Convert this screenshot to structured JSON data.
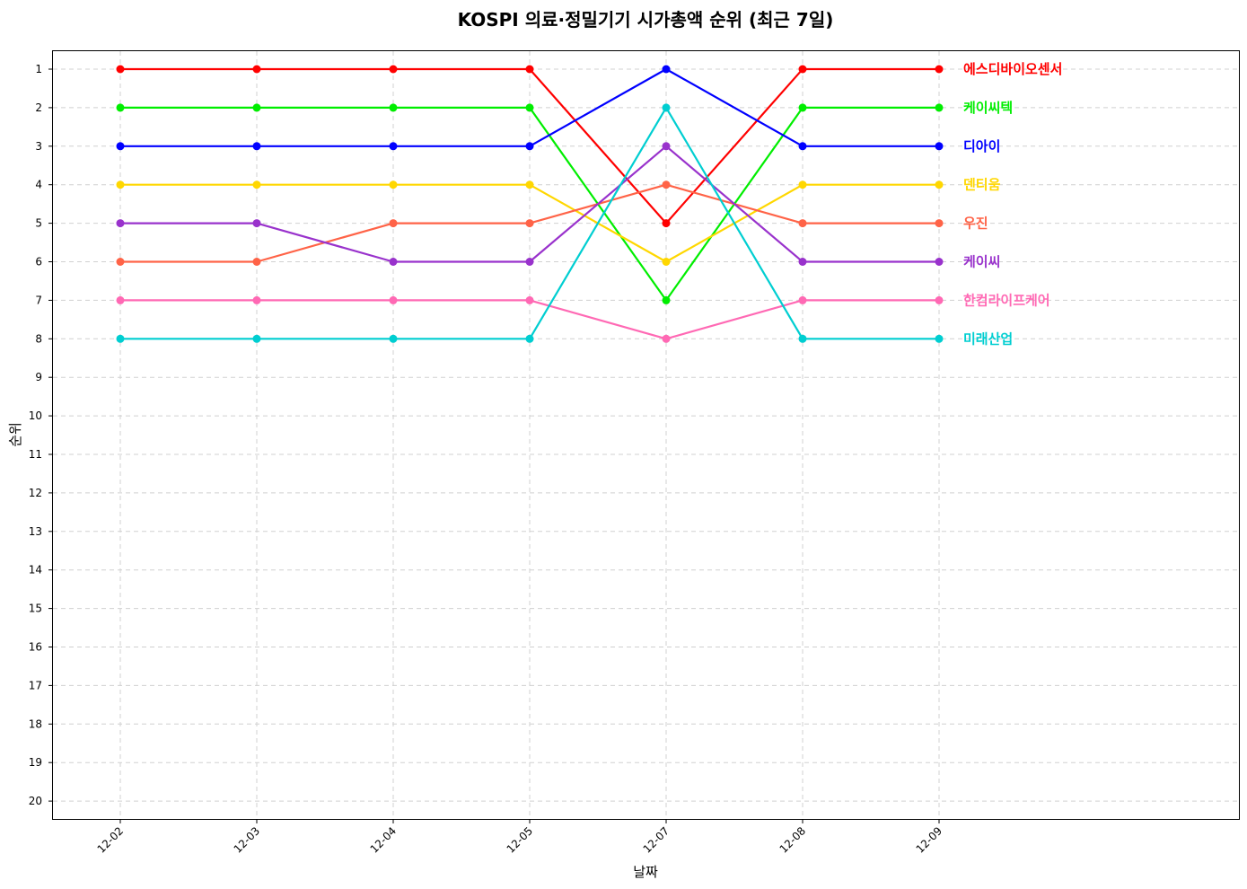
{
  "chart_data": {
    "type": "line",
    "title": "KOSPI 의료·정밀기기 시가총액 순위 (최근 7일)",
    "xlabel": "날짜",
    "ylabel": "순위",
    "categories": [
      "12-02",
      "12-03",
      "12-04",
      "12-05",
      "12-07",
      "12-08",
      "12-09"
    ],
    "y_ticks": [
      "1",
      "2",
      "3",
      "4",
      "5",
      "6",
      "7",
      "8",
      "9",
      "10",
      "11",
      "12",
      "13",
      "14",
      "15",
      "16",
      "17",
      "18",
      "19",
      "20"
    ],
    "ylim": [
      20.5,
      0.5
    ],
    "y_inverted": true,
    "grid": true,
    "legend": "end-of-line labels on the right",
    "series": [
      {
        "name": "에스디바이오센서",
        "color": "#ff0000",
        "values": [
          1,
          1,
          1,
          1,
          5,
          1,
          1
        ]
      },
      {
        "name": "케이씨텍",
        "color": "#00ee00",
        "values": [
          2,
          2,
          2,
          2,
          7,
          2,
          2
        ]
      },
      {
        "name": "디아이",
        "color": "#0000ff",
        "values": [
          3,
          3,
          3,
          3,
          1,
          3,
          3
        ]
      },
      {
        "name": "덴티움",
        "color": "#ffd700",
        "values": [
          4,
          4,
          4,
          4,
          6,
          4,
          4
        ]
      },
      {
        "name": "우진",
        "color": "#ff6347",
        "values": [
          6,
          6,
          5,
          5,
          4,
          5,
          5
        ]
      },
      {
        "name": "케이씨",
        "color": "#9932cc",
        "values": [
          5,
          5,
          6,
          6,
          3,
          6,
          6
        ]
      },
      {
        "name": "한컴라이프케어",
        "color": "#ff69b4",
        "values": [
          7,
          7,
          7,
          7,
          8,
          7,
          7
        ]
      },
      {
        "name": "미래산업",
        "color": "#00ced1",
        "values": [
          8,
          8,
          8,
          8,
          2,
          8,
          8
        ]
      }
    ]
  }
}
